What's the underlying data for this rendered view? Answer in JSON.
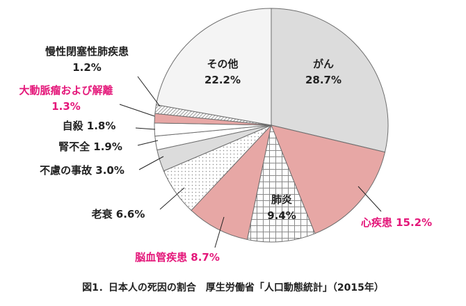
{
  "caption": "図1．日本人の死因の割合　厚生労働省「人口動態統計」（2015年）",
  "chart_data": {
    "type": "pie",
    "title": "",
    "unit": "%",
    "start_angle_deg": 0,
    "direction": "clockwise",
    "slices": [
      {
        "name": "がん",
        "value": 28.7,
        "label": "28.7%",
        "color": "#dcdcdc",
        "pattern": "none",
        "highlight": false
      },
      {
        "name": "心疾患",
        "value": 15.2,
        "label": "15.2%",
        "color": "#e7a7a5",
        "pattern": "none",
        "highlight": true
      },
      {
        "name": "肺炎",
        "value": 9.4,
        "label": "9.4%",
        "color": "#ffffff",
        "pattern": "grid",
        "highlight": false
      },
      {
        "name": "脳血管疾患",
        "value": 8.7,
        "label": "8.7%",
        "color": "#e7a7a5",
        "pattern": "none",
        "highlight": true
      },
      {
        "name": "老衰",
        "value": 6.6,
        "label": "6.6%",
        "color": "#ffffff",
        "pattern": "dots",
        "highlight": false
      },
      {
        "name": "不慮の事故",
        "value": 3.0,
        "label": "3.0%",
        "color": "#dcdcdc",
        "pattern": "none",
        "highlight": false
      },
      {
        "name": "腎不全",
        "value": 1.9,
        "label": "1.9%",
        "color": "#ffffff",
        "pattern": "none",
        "highlight": false
      },
      {
        "name": "自殺",
        "value": 1.8,
        "label": "1.8%",
        "color": "#ffffff",
        "pattern": "none",
        "highlight": false
      },
      {
        "name": "大動脈瘤および解離",
        "value": 1.3,
        "label": "1.3%",
        "color": "#e7a7a5",
        "pattern": "none",
        "highlight": true
      },
      {
        "name": "慢性閉塞性肺疾患",
        "value": 1.2,
        "label": "1.2%",
        "color": "#ffffff",
        "pattern": "diag",
        "highlight": false
      },
      {
        "name": "その他",
        "value": 22.2,
        "label": "22.2%",
        "color": "#f4f4f4",
        "pattern": "none",
        "highlight": false
      }
    ]
  }
}
